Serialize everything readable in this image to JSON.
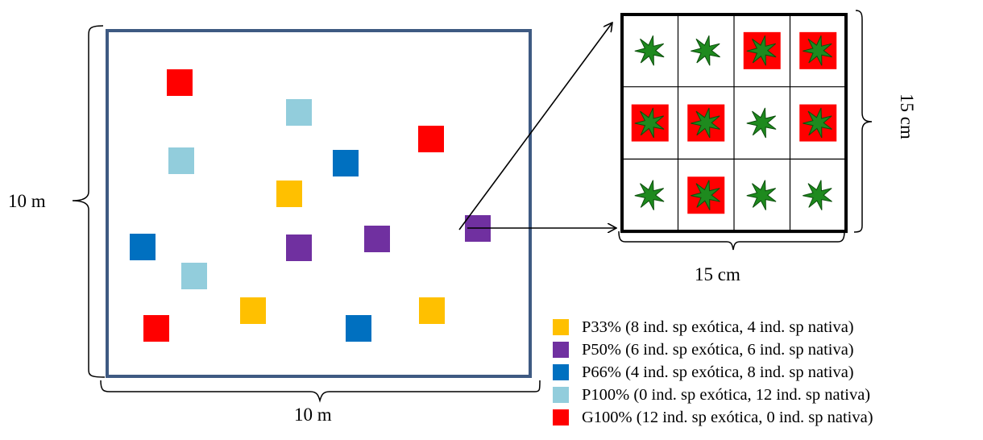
{
  "plot": {
    "side_label": "10 m",
    "bottom_label": "10 m",
    "border_color": "#3e5a82"
  },
  "detail": {
    "side_label": "15 cm",
    "bottom_label": "15 cm",
    "rows": 3,
    "cols": 4,
    "plant_icon": "leaf-icon",
    "plant_color": "#1e8a1e",
    "exotic_bg_color": "#ff0000",
    "cells": [
      [
        "native",
        "native",
        "exotic",
        "exotic"
      ],
      [
        "exotic",
        "exotic",
        "native",
        "exotic"
      ],
      [
        "native",
        "exotic",
        "native",
        "native"
      ]
    ]
  },
  "colors": {
    "P33": "#ffc000",
    "P50": "#7030a0",
    "P66": "#0070c0",
    "P100": "#92cddc",
    "G100": "#ff0000"
  },
  "legend": [
    {
      "key": "P33",
      "label": "P33% (8 ind. sp exótica, 4 ind. sp nativa)"
    },
    {
      "key": "P50",
      "label": "P50% (6 ind. sp exótica, 6 ind. sp nativa)"
    },
    {
      "key": "P66",
      "label": "P66% (4 ind. sp exótica, 8 ind. sp nativa)"
    },
    {
      "key": "P100",
      "label": "P100% (0 ind. sp exótica, 12 ind. sp nativa)"
    },
    {
      "key": "G100",
      "label": "G100% (12 ind. sp exótica, 0 ind. sp nativa)"
    }
  ],
  "plot_squares": [
    {
      "key": "G100"
    },
    {
      "key": "P100"
    },
    {
      "key": "G100"
    },
    {
      "key": "P100"
    },
    {
      "key": "P66"
    },
    {
      "key": "P33"
    },
    {
      "key": "P50"
    },
    {
      "key": "P66"
    },
    {
      "key": "P50"
    },
    {
      "key": "P50"
    },
    {
      "key": "P100"
    },
    {
      "key": "P33"
    },
    {
      "key": "P33"
    },
    {
      "key": "G100"
    },
    {
      "key": "P66"
    }
  ]
}
